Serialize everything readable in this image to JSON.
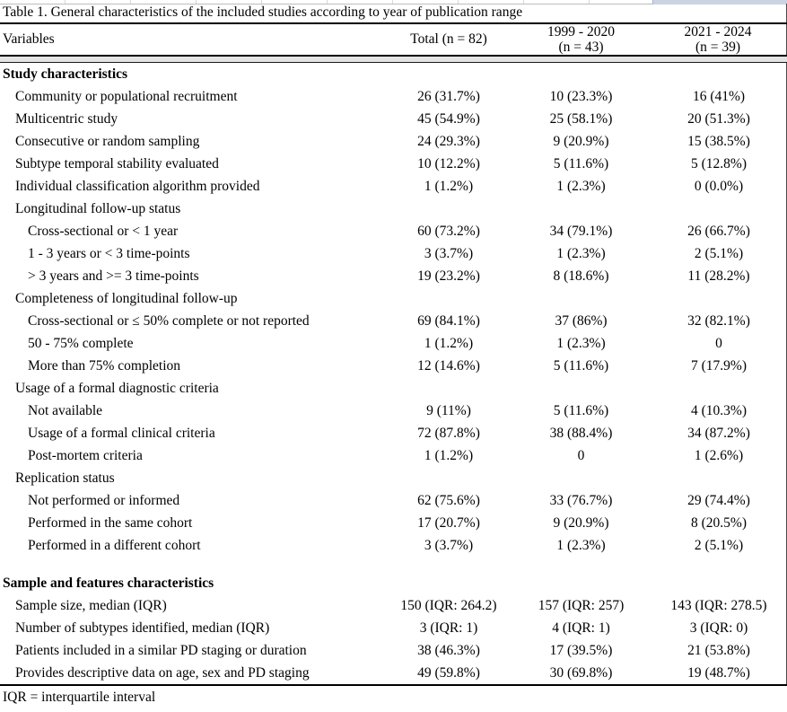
{
  "page": {
    "title": "Table 1. General characteristics of the included studies according to year of publication range",
    "footnote": "IQR = interquartile interval"
  },
  "colors": {
    "rule": "#000000",
    "header_band_gray": "#e3e3e3",
    "spreadsheet_cell_blue": "#ccd4e3"
  },
  "table": {
    "header": {
      "variables": "Variables",
      "total": "Total (n = 82)",
      "range1_line1": "1999 - 2020",
      "range1_line2": "(n = 43)",
      "range2_line1": "2021 - 2024",
      "range2_line2": "(n = 39)"
    },
    "rows": [
      {
        "label": "Study characteristics",
        "indent": 0,
        "bold": true,
        "values": [
          "",
          "",
          ""
        ]
      },
      {
        "label": "Community or populational recruitment",
        "indent": 1,
        "values": [
          "26 (31.7%)",
          "10 (23.3%)",
          "16 (41%)"
        ]
      },
      {
        "label": "Multicentric study",
        "indent": 1,
        "values": [
          "45 (54.9%)",
          "25 (58.1%)",
          "20 (51.3%)"
        ]
      },
      {
        "label": "Consecutive or random sampling",
        "indent": 1,
        "values": [
          "24 (29.3%)",
          "9 (20.9%)",
          "15 (38.5%)"
        ]
      },
      {
        "label": "Subtype temporal stability evaluated",
        "indent": 1,
        "values": [
          "10 (12.2%)",
          "5 (11.6%)",
          "5 (12.8%)"
        ]
      },
      {
        "label": "Individual classification algorithm provided",
        "indent": 1,
        "values": [
          "1 (1.2%)",
          "1 (2.3%)",
          "0 (0.0%)"
        ]
      },
      {
        "label": "Longitudinal follow-up status",
        "indent": 1,
        "values": [
          "",
          "",
          ""
        ]
      },
      {
        "label": "Cross-sectional or < 1 year",
        "indent": 2,
        "values": [
          "60 (73.2%)",
          "34 (79.1%)",
          "26 (66.7%)"
        ]
      },
      {
        "label": "1 - 3 years or < 3 time-points",
        "indent": 2,
        "values": [
          "3 (3.7%)",
          "1 (2.3%)",
          "2 (5.1%)"
        ]
      },
      {
        "label": "> 3 years and >= 3 time-points",
        "indent": 2,
        "values": [
          "19 (23.2%)",
          "8 (18.6%)",
          "11 (28.2%)"
        ]
      },
      {
        "label": "Completeness of longitudinal follow-up",
        "indent": 1,
        "values": [
          "",
          "",
          ""
        ]
      },
      {
        "label": "Cross-sectional or ≤ 50% complete or not reported",
        "indent": 2,
        "values": [
          "69 (84.1%)",
          "37 (86%)",
          "32 (82.1%)"
        ]
      },
      {
        "label": "50 - 75% complete",
        "indent": 2,
        "values": [
          "1 (1.2%)",
          "1 (2.3%)",
          "0"
        ]
      },
      {
        "label": "More than 75% completion",
        "indent": 2,
        "values": [
          "12 (14.6%)",
          "5 (11.6%)",
          "7 (17.9%)"
        ]
      },
      {
        "label": "Usage of a formal diagnostic criteria",
        "indent": 1,
        "values": [
          "",
          "",
          ""
        ]
      },
      {
        "label": "Not available",
        "indent": 2,
        "values": [
          "9 (11%)",
          "5 (11.6%)",
          "4 (10.3%)"
        ]
      },
      {
        "label": "Usage of a formal clinical criteria",
        "indent": 2,
        "values": [
          "72 (87.8%)",
          "38 (88.4%)",
          "34 (87.2%)"
        ]
      },
      {
        "label": "Post-mortem criteria",
        "indent": 2,
        "values": [
          "1 (1.2%)",
          "0",
          "1 (2.6%)"
        ]
      },
      {
        "label": "Replication status",
        "indent": 1,
        "values": [
          "",
          "",
          ""
        ]
      },
      {
        "label": "Not performed or informed",
        "indent": 2,
        "values": [
          "62 (75.6%)",
          "33 (76.7%)",
          "29 (74.4%)"
        ]
      },
      {
        "label": "Performed in the same cohort",
        "indent": 2,
        "values": [
          "17 (20.7%)",
          "9 (20.9%)",
          "8 (20.5%)"
        ]
      },
      {
        "label": "Performed in a different cohort",
        "indent": 2,
        "values": [
          "3 (3.7%)",
          "1 (2.3%)",
          "2 (5.1%)"
        ]
      },
      {
        "label": "",
        "indent": 0,
        "spacer": true,
        "values": [
          "",
          "",
          ""
        ]
      },
      {
        "label": "Sample and features characteristics",
        "indent": 0,
        "bold": true,
        "values": [
          "",
          "",
          ""
        ]
      },
      {
        "label": "Sample size, median (IQR)",
        "indent": 1,
        "values": [
          "150 (IQR: 264.2)",
          "157 (IQR: 257)",
          "143 (IQR: 278.5)"
        ]
      },
      {
        "label": "Number of subtypes identified, median (IQR)",
        "indent": 1,
        "values": [
          "3 (IQR: 1)",
          "4 (IQR: 1)",
          "3 (IQR: 0)"
        ]
      },
      {
        "label": "Patients included in a similar PD staging or duration",
        "indent": 1,
        "values": [
          "38 (46.3%)",
          "17 (39.5%)",
          "21 (53.8%)"
        ]
      },
      {
        "label": "Provides descriptive data on age, sex and PD staging",
        "indent": 1,
        "values": [
          "49 (59.8%)",
          "30 (69.8%)",
          "19 (48.7%)"
        ]
      }
    ]
  }
}
